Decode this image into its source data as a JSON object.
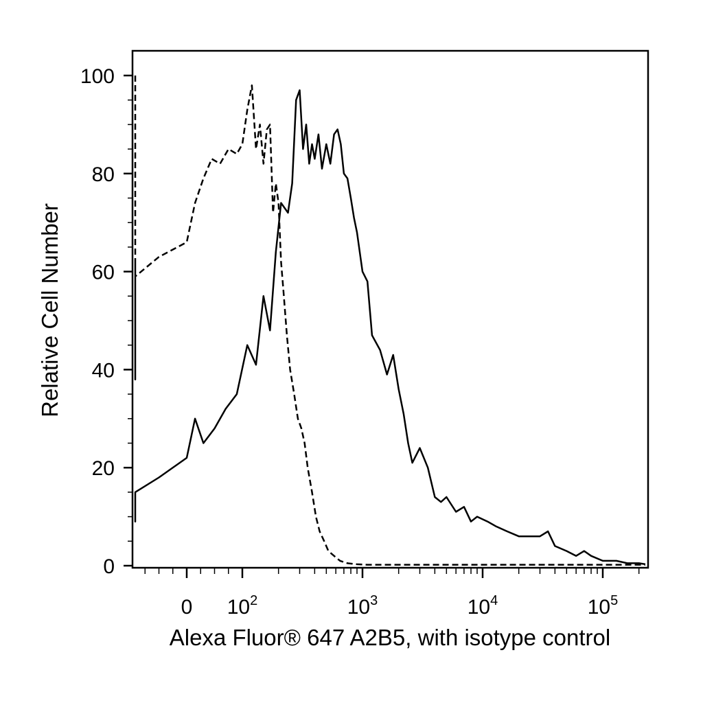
{
  "chart_data": {
    "type": "line",
    "title": "",
    "xlabel": "Alexa Fluor® 647 A2B5, with isotype control",
    "ylabel": "Relative Cell Number",
    "x_scale": "biexponential",
    "ylim": [
      0,
      100
    ],
    "y_ticks": [
      0,
      20,
      40,
      60,
      80,
      100
    ],
    "x_ticks": [
      {
        "value": 0,
        "base": "0",
        "exp": ""
      },
      {
        "value": 100,
        "base": "10",
        "exp": "2"
      },
      {
        "value": 1000,
        "base": "10",
        "exp": "3"
      },
      {
        "value": 10000,
        "base": "10",
        "exp": "4"
      },
      {
        "value": 100000,
        "base": "10",
        "exp": "5"
      }
    ],
    "grid": false,
    "legend": "none",
    "series": [
      {
        "style": "solid",
        "color": "#000000",
        "x": [
          -600,
          -500,
          -400,
          -300,
          -200,
          -100,
          -50,
          0,
          15,
          30,
          50,
          70,
          90,
          110,
          130,
          150,
          170,
          190,
          210,
          240,
          260,
          280,
          300,
          320,
          340,
          360,
          380,
          400,
          430,
          460,
          500,
          540,
          580,
          620,
          660,
          700,
          750,
          800,
          850,
          900,
          1000,
          1100,
          1200,
          1400,
          1600,
          1800,
          2000,
          2200,
          2400,
          2600,
          3000,
          3500,
          4000,
          4500,
          5000,
          6000,
          7000,
          8000,
          9000,
          11000,
          13000,
          16000,
          20000,
          25000,
          30000,
          35000,
          40000,
          50000,
          60000,
          70000,
          80000,
          100000,
          130000,
          160000,
          200000,
          250000
        ],
        "y": [
          14,
          9,
          11,
          10,
          12,
          15,
          18,
          22,
          30,
          25,
          28,
          32,
          35,
          45,
          41,
          55,
          48,
          64,
          74,
          72,
          78,
          95,
          97,
          85,
          90,
          82,
          86,
          83,
          88,
          81,
          86,
          82,
          88,
          89,
          86,
          80,
          79,
          75,
          71,
          68,
          60,
          58,
          47,
          44,
          39,
          43,
          36,
          31,
          25,
          21,
          24,
          20,
          14,
          13,
          14,
          11,
          12,
          9,
          10,
          9,
          8,
          7,
          6,
          6,
          6,
          7,
          4,
          3,
          2,
          3,
          2,
          1,
          1,
          0.5,
          0.5,
          0.3
        ]
      },
      {
        "style": "dashed",
        "color": "#000000",
        "x": [
          -600,
          -590,
          -580,
          -550,
          -500,
          -450,
          -400,
          -300,
          -200,
          -100,
          -50,
          0,
          15,
          30,
          45,
          60,
          75,
          90,
          100,
          110,
          120,
          130,
          140,
          150,
          160,
          170,
          180,
          190,
          200,
          210,
          220,
          235,
          250,
          270,
          290,
          310,
          330,
          350,
          380,
          410,
          440,
          480,
          520,
          580,
          650,
          750,
          900,
          1100,
          1500,
          2000,
          3000,
          5000,
          10000,
          30000,
          100000,
          250000
        ],
        "y": [
          100,
          38,
          45,
          48,
          52,
          50,
          54,
          57,
          62,
          59,
          63,
          66,
          74,
          79,
          83,
          82,
          85,
          84,
          86,
          93,
          98,
          85,
          90,
          82,
          89,
          90,
          72,
          78,
          74,
          62,
          56,
          47,
          40,
          35,
          30,
          28,
          25,
          20,
          15,
          10,
          7,
          5,
          3,
          2,
          1,
          0.5,
          0.3,
          0.2,
          0.2,
          0.2,
          0.2,
          0.2,
          0.2,
          0.2,
          0.2,
          0.2
        ]
      }
    ]
  }
}
